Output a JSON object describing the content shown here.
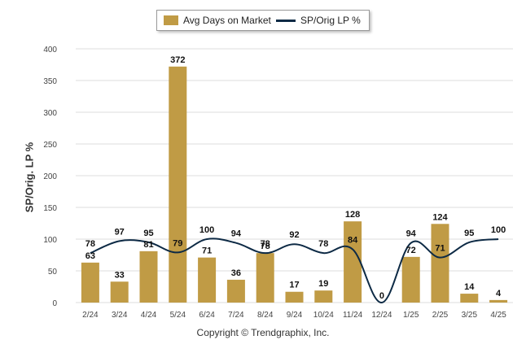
{
  "legend": {
    "bar_label": "Avg Days on Market",
    "line_label": "SP/Orig LP %"
  },
  "copyright": "Copyright © Trendgraphix, Inc.",
  "colors": {
    "bar": "#c09b45",
    "line": "#0d2a45",
    "grid": "#dddddd"
  },
  "chart_data": {
    "type": "bar",
    "categories": [
      "2/24",
      "3/24",
      "4/24",
      "5/24",
      "6/24",
      "7/24",
      "8/24",
      "9/24",
      "10/24",
      "11/24",
      "12/24",
      "1/25",
      "2/25",
      "3/25",
      "4/25"
    ],
    "series": [
      {
        "name": "Avg Days on Market",
        "type": "bar",
        "values": [
          63,
          33,
          81,
          372,
          71,
          36,
          78,
          17,
          19,
          128,
          0,
          72,
          124,
          14,
          4
        ]
      },
      {
        "name": "SP/Orig LP %",
        "type": "line",
        "values": [
          78,
          97,
          95,
          79,
          100,
          94,
          78,
          92,
          78,
          84,
          null,
          94,
          71,
          95,
          100
        ]
      }
    ],
    "bar_labels": [
      "63",
      "33",
      "81",
      "372",
      "71",
      "36",
      "78",
      "17",
      "19",
      "128",
      "0",
      "72",
      "124",
      "14",
      "4"
    ],
    "line_labels": [
      "78",
      "97",
      "95",
      "79",
      "100",
      "94",
      "78",
      "92",
      "78",
      "84",
      "",
      "94",
      "71",
      "95",
      "100"
    ],
    "ylabel": "SP/Orig. LP %",
    "xlabel": "",
    "ylim": [
      0,
      400
    ],
    "yticks": [
      "0",
      "50",
      "100",
      "150",
      "200",
      "250",
      "300",
      "350",
      "400"
    ],
    "grid": true,
    "legend_position": "top-center"
  }
}
